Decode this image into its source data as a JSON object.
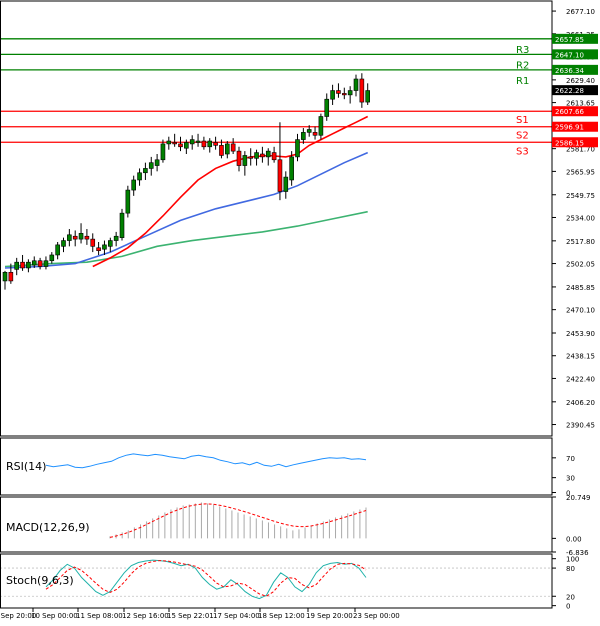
{
  "chart_data": {
    "type": "candlestick",
    "main": {
      "ylim": [
        2382.5,
        2682.0
      ],
      "price_ticks": [
        "2677.10",
        "2661.35",
        "2645.60",
        "2629.40",
        "2613.65",
        "2597.90",
        "2581.70",
        "2565.95",
        "2549.75",
        "2534.00",
        "2517.80",
        "2502.05",
        "2485.85",
        "2470.10",
        "2453.90",
        "2438.15",
        "2422.40",
        "2406.20",
        "2390.45"
      ],
      "x_labels": [
        "9 Sep 20:00",
        "10 Sep 00:00",
        "11 Sep 08:00",
        "12 Sep 16:00",
        "15 Sep 22:01",
        "17 Sep 04:00",
        "18 Sep 12:00",
        "19 Sep 20:00",
        "23 Sep 00:00"
      ],
      "levels": [
        {
          "name": "R3",
          "value": 2657.85,
          "label": "2657.85",
          "color": "#008000"
        },
        {
          "name": "R2",
          "value": 2647.1,
          "label": "2647.10",
          "color": "#008000"
        },
        {
          "name": "R1",
          "value": 2636.34,
          "label": "2636.34",
          "color": "#008000"
        },
        {
          "name": "S1",
          "value": 2607.66,
          "label": "2607.66",
          "color": "#ff0000"
        },
        {
          "name": "S2",
          "value": 2596.91,
          "label": "2596.91",
          "color": "#ff0000"
        },
        {
          "name": "S3",
          "value": 2586.15,
          "label": "2586.15",
          "color": "#ff0000"
        }
      ],
      "current_price": "2622.28",
      "candles": [
        [
          2490,
          2497,
          2484,
          2496
        ],
        [
          2496,
          2502,
          2488,
          2490
        ],
        [
          2498,
          2506,
          2494,
          2503
        ],
        [
          2503,
          2508,
          2497,
          2499
        ],
        [
          2499,
          2505,
          2496,
          2503
        ],
        [
          2501,
          2507,
          2499,
          2504
        ],
        [
          2504,
          2506,
          2498,
          2500
        ],
        [
          2500,
          2507,
          2498,
          2504
        ],
        [
          2504,
          2510,
          2502,
          2508
        ],
        [
          2508,
          2517,
          2505,
          2515
        ],
        [
          2514,
          2520,
          2510,
          2518
        ],
        [
          2518,
          2526,
          2514,
          2522
        ],
        [
          2521,
          2525,
          2514,
          2519
        ],
        [
          2519,
          2530,
          2516,
          2523
        ],
        [
          2521,
          2526,
          2515,
          2519
        ],
        [
          2519,
          2523,
          2510,
          2514
        ],
        [
          2513,
          2517,
          2508,
          2511
        ],
        [
          2512,
          2518,
          2508,
          2515
        ],
        [
          2514,
          2520,
          2510,
          2518
        ],
        [
          2518,
          2524,
          2514,
          2521
        ],
        [
          2520,
          2540,
          2518,
          2537
        ],
        [
          2537,
          2556,
          2534,
          2553
        ],
        [
          2553,
          2563,
          2549,
          2560
        ],
        [
          2560,
          2568,
          2556,
          2565
        ],
        [
          2565,
          2572,
          2560,
          2568
        ],
        [
          2568,
          2576,
          2563,
          2572
        ],
        [
          2570,
          2578,
          2566,
          2574
        ],
        [
          2574,
          2588,
          2572,
          2585
        ],
        [
          2585,
          2590,
          2581,
          2587
        ],
        [
          2586,
          2592,
          2583,
          2585
        ],
        [
          2585,
          2590,
          2580,
          2583
        ],
        [
          2582,
          2588,
          2578,
          2586
        ],
        [
          2585,
          2591,
          2581,
          2588
        ],
        [
          2586,
          2592,
          2583,
          2587
        ],
        [
          2587,
          2590,
          2581,
          2583
        ],
        [
          2583,
          2589,
          2579,
          2587
        ],
        [
          2586,
          2590,
          2581,
          2584
        ],
        [
          2584,
          2588,
          2575,
          2577
        ],
        [
          2578,
          2587,
          2575,
          2585
        ],
        [
          2585,
          2589,
          2578,
          2580
        ],
        [
          2580,
          2583,
          2566,
          2570
        ],
        [
          2570,
          2580,
          2563,
          2577
        ],
        [
          2576,
          2582,
          2570,
          2575
        ],
        [
          2575,
          2581,
          2570,
          2579
        ],
        [
          2578,
          2583,
          2572,
          2576
        ],
        [
          2576,
          2582,
          2570,
          2580
        ],
        [
          2579,
          2583,
          2572,
          2574
        ],
        [
          2574,
          2600,
          2546,
          2552
        ],
        [
          2552,
          2566,
          2547,
          2562
        ],
        [
          2560,
          2580,
          2556,
          2576
        ],
        [
          2576,
          2592,
          2573,
          2588
        ],
        [
          2588,
          2596,
          2585,
          2593
        ],
        [
          2593,
          2598,
          2590,
          2595
        ],
        [
          2593,
          2597,
          2588,
          2591
        ],
        [
          2591,
          2606,
          2588,
          2604
        ],
        [
          2604,
          2620,
          2601,
          2616
        ],
        [
          2616,
          2626,
          2612,
          2622
        ],
        [
          2622,
          2627,
          2617,
          2620
        ],
        [
          2620,
          2624,
          2616,
          2619
        ],
        [
          2619,
          2625,
          2613,
          2622
        ],
        [
          2622,
          2633,
          2618,
          2630
        ],
        [
          2630,
          2634,
          2610,
          2614
        ],
        [
          2614,
          2627,
          2612,
          2622
        ]
      ],
      "ma_fast": [
        [
          15,
          2500
        ],
        [
          18,
          2506
        ],
        [
          21,
          2513
        ],
        [
          24,
          2523
        ],
        [
          27,
          2535
        ],
        [
          30,
          2548
        ],
        [
          33,
          2560
        ],
        [
          36,
          2568
        ],
        [
          39,
          2573
        ],
        [
          42,
          2576
        ],
        [
          45,
          2577
        ],
        [
          48,
          2576
        ],
        [
          50,
          2578
        ],
        [
          52,
          2584
        ],
        [
          54,
          2588
        ],
        [
          56,
          2592
        ],
        [
          58,
          2596
        ],
        [
          60,
          2600
        ],
        [
          62,
          2604
        ]
      ],
      "ma_mid": [
        [
          0,
          2499
        ],
        [
          6,
          2500
        ],
        [
          12,
          2502
        ],
        [
          18,
          2510
        ],
        [
          24,
          2521
        ],
        [
          30,
          2532
        ],
        [
          36,
          2540
        ],
        [
          42,
          2546
        ],
        [
          46,
          2550
        ],
        [
          50,
          2556
        ],
        [
          54,
          2564
        ],
        [
          58,
          2572
        ],
        [
          62,
          2579
        ]
      ],
      "ma_slow": [
        [
          0,
          2500
        ],
        [
          4,
          2501
        ],
        [
          8,
          2502
        ],
        [
          14,
          2503
        ],
        [
          20,
          2507
        ],
        [
          26,
          2514
        ],
        [
          32,
          2518
        ],
        [
          38,
          2521
        ],
        [
          44,
          2524
        ],
        [
          50,
          2528
        ],
        [
          56,
          2533
        ],
        [
          62,
          2538
        ]
      ]
    },
    "rsi": {
      "label": "RSI(14)",
      "ylim": [
        0,
        100
      ],
      "ticks": [
        "70",
        "30",
        "0"
      ],
      "values": [
        55,
        52,
        54,
        56,
        51,
        50,
        53,
        57,
        60,
        63,
        70,
        75,
        78,
        76,
        74,
        77,
        75,
        72,
        70,
        68,
        73,
        75,
        72,
        70,
        65,
        62,
        58,
        60,
        56,
        61,
        55,
        53,
        57,
        52,
        56,
        59,
        62,
        65,
        68,
        70,
        69,
        70,
        67,
        68,
        66
      ]
    },
    "macd": {
      "label": "MACD(12,26,9)",
      "ylim": [
        -6.836,
        20.749
      ],
      "ticks": [
        "20.749",
        "0.00",
        "-6.836"
      ],
      "histogram": [
        1,
        2,
        3,
        4,
        5.5,
        7,
        8.5,
        10,
        11.5,
        13,
        14.5,
        15.5,
        16.5,
        17,
        17.5,
        18,
        17.5,
        17,
        16,
        15,
        14,
        13,
        12,
        11,
        10,
        9,
        8,
        7,
        6,
        5,
        4,
        4.5,
        5.5,
        6.5,
        7.5,
        8.5,
        9.5,
        10.5,
        11.5,
        12.5,
        13.5,
        14.5,
        15.5
      ],
      "signal": [
        0.5,
        1.2,
        2,
        3,
        4.2,
        5.5,
        7,
        8.5,
        10,
        11.5,
        13,
        14.2,
        15.3,
        16.2,
        16.8,
        17.2,
        17.3,
        17.1,
        16.6,
        16,
        15.2,
        14.4,
        13.5,
        12.5,
        11.5,
        10.5,
        9.5,
        8.5,
        7.6,
        6.8,
        6.2,
        5.9,
        5.9,
        6.2,
        6.8,
        7.5,
        8.3,
        9.2,
        10.1,
        11,
        12,
        13,
        14
      ]
    },
    "stoch": {
      "label": "Stoch(9,6,3)",
      "ylim": [
        0,
        100
      ],
      "ticks": [
        "100",
        "80",
        "20",
        "0"
      ],
      "k": [
        40,
        55,
        75,
        88,
        80,
        60,
        45,
        30,
        22,
        30,
        50,
        70,
        85,
        92,
        95,
        97,
        96,
        94,
        90,
        85,
        88,
        80,
        60,
        45,
        35,
        40,
        55,
        45,
        30,
        20,
        15,
        22,
        50,
        70,
        60,
        40,
        30,
        45,
        70,
        85,
        90,
        92,
        88,
        90,
        80,
        60
      ],
      "d": [
        35,
        45,
        60,
        75,
        82,
        75,
        62,
        48,
        35,
        28,
        35,
        50,
        68,
        82,
        90,
        94,
        96,
        95,
        93,
        90,
        87,
        84,
        76,
        62,
        48,
        40,
        42,
        48,
        45,
        35,
        25,
        20,
        30,
        48,
        60,
        58,
        45,
        38,
        45,
        62,
        78,
        88,
        90,
        89,
        86,
        76
      ]
    }
  }
}
